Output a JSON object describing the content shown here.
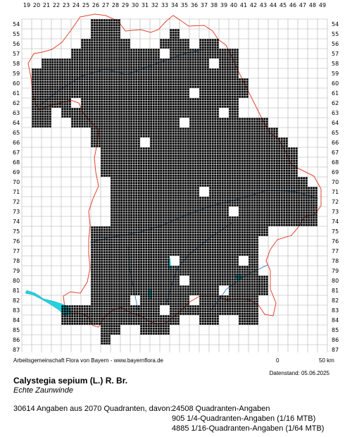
{
  "map": {
    "x_labels": [
      "19",
      "20",
      "21",
      "22",
      "23",
      "24",
      "25",
      "26",
      "27",
      "28",
      "29",
      "30",
      "31",
      "32",
      "33",
      "34",
      "35",
      "36",
      "37",
      "38",
      "39",
      "40",
      "41",
      "42",
      "43",
      "44",
      "45",
      "46",
      "47",
      "48",
      "49"
    ],
    "y_labels": [
      "54",
      "55",
      "56",
      "57",
      "58",
      "59",
      "60",
      "61",
      "62",
      "63",
      "64",
      "65",
      "66",
      "67",
      "68",
      "69",
      "70",
      "71",
      "72",
      "73",
      "74",
      "75",
      "76",
      "77",
      "78",
      "79",
      "80",
      "81",
      "82",
      "83",
      "84",
      "85",
      "86",
      "87"
    ],
    "colors": {
      "grid": "#b0b0b0",
      "border": "#e0452d",
      "river": "#4a90c8",
      "lake": "#22d3e0",
      "dot": "#000000"
    },
    "coverage": [
      {
        "row": 54,
        "spans": [
          [
            26,
            28
          ]
        ],
        "dots": [
          [
            34
          ]
        ]
      },
      {
        "row": 55,
        "spans": [
          [
            26,
            28
          ],
          [
            34,
            34
          ]
        ]
      },
      {
        "row": 56,
        "spans": [
          [
            25,
            29
          ],
          [
            33,
            35
          ],
          [
            37,
            38
          ]
        ]
      },
      {
        "row": 57,
        "spans": [
          [
            24,
            40
          ]
        ]
      },
      {
        "row": 58,
        "spans": [
          [
            21,
            40
          ]
        ]
      },
      {
        "row": 59,
        "spans": [
          [
            20,
            40
          ]
        ]
      },
      {
        "row": 60,
        "spans": [
          [
            20,
            41
          ]
        ]
      },
      {
        "row": 61,
        "spans": [
          [
            20,
            41
          ]
        ]
      },
      {
        "row": 62,
        "spans": [
          [
            20,
            40
          ]
        ]
      },
      {
        "row": 63,
        "spans": [
          [
            20,
            40
          ]
        ]
      },
      {
        "row": 64,
        "spans": [
          [
            20,
            21
          ],
          [
            24,
            43
          ]
        ]
      },
      {
        "row": 65,
        "spans": [
          [
            26,
            44
          ]
        ]
      },
      {
        "row": 66,
        "spans": [
          [
            26,
            45
          ]
        ]
      },
      {
        "row": 67,
        "spans": [
          [
            27,
            46
          ]
        ]
      },
      {
        "row": 68,
        "spans": [
          [
            27,
            46
          ]
        ]
      },
      {
        "row": 69,
        "spans": [
          [
            27,
            46
          ]
        ]
      },
      {
        "row": 70,
        "spans": [
          [
            28,
            47
          ]
        ]
      },
      {
        "row": 71,
        "spans": [
          [
            28,
            48
          ]
        ]
      },
      {
        "row": 72,
        "spans": [
          [
            28,
            48
          ]
        ]
      },
      {
        "row": 73,
        "spans": [
          [
            28,
            48
          ]
        ]
      },
      {
        "row": 74,
        "spans": [
          [
            28,
            48
          ]
        ]
      },
      {
        "row": 75,
        "spans": [
          [
            26,
            43
          ]
        ]
      },
      {
        "row": 76,
        "spans": [
          [
            26,
            42
          ]
        ]
      },
      {
        "row": 77,
        "spans": [
          [
            26,
            42
          ]
        ]
      },
      {
        "row": 78,
        "spans": [
          [
            26,
            42
          ]
        ]
      },
      {
        "row": 79,
        "spans": [
          [
            26,
            42
          ]
        ]
      },
      {
        "row": 80,
        "spans": [
          [
            26,
            43
          ]
        ]
      },
      {
        "row": 81,
        "spans": [
          [
            26,
            43
          ]
        ]
      },
      {
        "row": 82,
        "spans": [
          [
            26,
            42
          ]
        ]
      },
      {
        "row": 83,
        "spans": [
          [
            23,
            42
          ]
        ]
      },
      {
        "row": 84,
        "spans": [
          [
            23,
            34
          ],
          [
            37,
            38
          ],
          [
            41,
            42
          ]
        ]
      },
      {
        "row": 85,
        "spans": [
          [
            27,
            28
          ],
          [
            31,
            33
          ]
        ]
      },
      {
        "row": 86,
        "spans": [
          [
            27,
            27
          ]
        ]
      }
    ],
    "gaps": [
      [
        33,
        57
      ],
      [
        38,
        58
      ],
      [
        36,
        61
      ],
      [
        35,
        64
      ],
      [
        39,
        63
      ],
      [
        31,
        66
      ],
      [
        37,
        71
      ],
      [
        40,
        73
      ],
      [
        34,
        78
      ],
      [
        41,
        78
      ],
      [
        35,
        80
      ],
      [
        30,
        82
      ],
      [
        33,
        83
      ],
      [
        36,
        82
      ],
      [
        39,
        81
      ],
      [
        24,
        62
      ],
      [
        22,
        63
      ]
    ]
  },
  "credit": "Arbeitsgemeinschaft Flora von Bayern - www.bayernflora.de",
  "scale": {
    "zero": "0",
    "km": "50 km"
  },
  "date": "Datenstand: 05.06.2025",
  "species": {
    "scientific": "Calystegia sepium (L.) R. Br.",
    "common": "Echte Zaunwinde"
  },
  "stats": {
    "summary": "30614 Angaben aus 2070 Quadranten, davon:",
    "detail1": "24508 Quadranten-Angaben",
    "detail2": "905 1/4-Quadranten-Angaben (1/16 MTB)",
    "detail3": "4885 1/16-Quadranten-Angaben (1/64 MTB)"
  }
}
